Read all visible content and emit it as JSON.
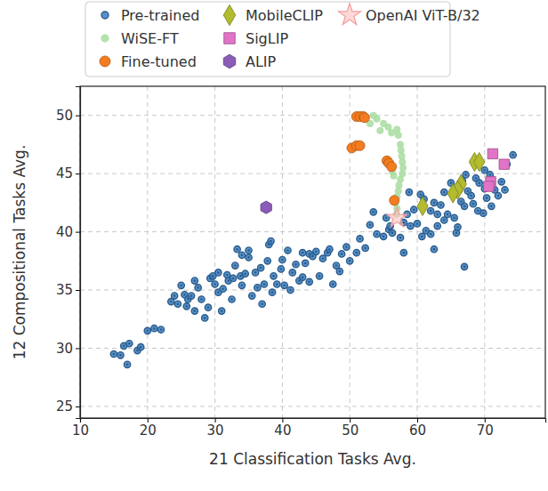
{
  "chart_data": {
    "type": "scatter",
    "x_label": "21 Classification Tasks Avg.",
    "y_label": "12 Compositional Tasks Avg.",
    "xlim": [
      10,
      79
    ],
    "xticks": [
      10,
      20,
      30,
      40,
      50,
      60,
      70
    ],
    "ylim": [
      24,
      52.5
    ],
    "yticks": [
      25,
      30,
      35,
      40,
      45,
      50
    ],
    "grid": true,
    "legend": "top",
    "series": [
      {
        "name": "Pre-trained",
        "color": "#3b7fc0",
        "marker": "circle",
        "x": [
          15,
          16,
          16.5,
          17,
          17.3,
          18.5,
          19,
          20,
          21,
          22,
          23.5,
          24,
          24.5,
          25,
          25.5,
          25.8,
          26,
          26.5,
          27,
          27,
          27.5,
          28,
          28.5,
          29,
          29.3,
          29.7,
          30,
          30.5,
          30.5,
          31,
          31.2,
          31.8,
          32,
          32.5,
          32.7,
          33,
          33.3,
          33.8,
          34,
          34,
          34.5,
          35,
          35,
          35.5,
          36,
          36.3,
          36.8,
          37,
          37.3,
          37.8,
          38,
          38.3,
          38.5,
          38.7,
          39.2,
          39.8,
          40,
          40.3,
          40.8,
          41.2,
          41.5,
          42,
          42.5,
          43,
          43,
          43.4,
          44,
          44,
          44.5,
          45,
          45.5,
          46,
          46.7,
          47,
          47.5,
          48,
          48.5,
          48.8,
          49.5,
          50,
          51,
          51.5,
          52.3,
          53,
          53.5,
          54,
          55,
          55.4,
          55.8,
          56,
          56.3,
          57.5,
          58,
          58,
          58.5,
          58.8,
          59,
          59.5,
          60,
          60.5,
          60.7,
          61,
          61.3,
          62,
          62,
          62.5,
          62.5,
          63,
          63,
          63.5,
          64,
          64,
          64.5,
          65,
          65.5,
          65.8,
          66,
          66.5,
          66.7,
          67,
          67,
          67.2,
          67.5,
          68,
          68.3,
          68.7,
          69,
          69.2,
          69.8,
          70,
          70,
          70.3,
          70.8,
          71,
          71.5,
          72,
          72.5,
          73,
          73.3,
          74.2
        ],
        "values": [
          29.5,
          29.4,
          30.2,
          28.6,
          30.4,
          29.8,
          30.1,
          31.5,
          31.7,
          31.6,
          34,
          34.5,
          33.8,
          35.4,
          34.6,
          33.6,
          34.2,
          34.5,
          33.2,
          35.8,
          35.2,
          34.2,
          32.6,
          33.5,
          36,
          36.2,
          35.5,
          34.8,
          36.5,
          33.2,
          35.1,
          36.3,
          35.8,
          34.2,
          36,
          37.1,
          38.5,
          36.2,
          38,
          35.4,
          36.4,
          37.8,
          38.4,
          34.5,
          36.5,
          35.2,
          36.9,
          33.8,
          35.5,
          37.5,
          38.9,
          39.2,
          34.8,
          36.2,
          35.5,
          36.8,
          37.6,
          35.4,
          38.4,
          35,
          36.5,
          37.2,
          35.8,
          38.2,
          36.1,
          37.3,
          35.7,
          38.1,
          37.9,
          38.3,
          36.2,
          37.7,
          38.2,
          38.5,
          35.5,
          37.1,
          36.6,
          38.1,
          38.7,
          37.5,
          38.2,
          39.4,
          38.6,
          40.6,
          41.7,
          39.8,
          39.6,
          41.2,
          40.2,
          40.5,
          39.9,
          39.5,
          40.8,
          38.2,
          41.5,
          43.4,
          40.5,
          41.9,
          40.7,
          43.2,
          39.6,
          42.8,
          40.1,
          39.8,
          41.8,
          42.5,
          38.5,
          40.5,
          41.5,
          42.3,
          41,
          43.4,
          41.5,
          44.2,
          41.2,
          39.9,
          40.4,
          42.6,
          44.4,
          37,
          42.2,
          44.9,
          43.5,
          43.1,
          42.4,
          44.6,
          41.8,
          44.2,
          41.6,
          43.7,
          45.3,
          42.9,
          44.9,
          42.2,
          43.6,
          43.1,
          44.3,
          43.6,
          45.8,
          46.6
        ]
      },
      {
        "name": "WiSE-FT",
        "color": "#a8dca0",
        "marker": "circle",
        "x": [
          53,
          53.5,
          54,
          54.5,
          55,
          55.7,
          56.2,
          57,
          57.2,
          57.5,
          57.6,
          57.7,
          57.8,
          57.9,
          56.3,
          56.5,
          57.8,
          57.5,
          57.3,
          57.2,
          57,
          56.8,
          57,
          56.9
        ],
        "values": [
          49.3,
          50,
          49.7,
          48.7,
          49.3,
          49,
          48.5,
          48.8,
          48.3,
          47.5,
          47,
          46.5,
          46,
          45.5,
          45.2,
          44.8,
          45,
          44.5,
          44,
          43.5,
          43,
          42.5,
          42,
          41.5
        ]
      },
      {
        "name": "Fine-tuned",
        "color": "#f47c20",
        "marker": "circle",
        "x": [
          51,
          51.5,
          52,
          52.2,
          50.3,
          51,
          51.5,
          55.5,
          55.8,
          56.2,
          56.6
        ],
        "values": [
          49.9,
          49.9,
          49.9,
          49.8,
          47.2,
          47.4,
          47.4,
          46.1,
          45.9,
          45.6,
          42.7
        ]
      },
      {
        "name": "MobileCLIP",
        "color": "#b3bb2f",
        "marker": "diamond",
        "x": [
          68.5,
          69.2,
          66.5,
          66,
          65.3,
          60.8
        ],
        "values": [
          46,
          46,
          44.1,
          43.6,
          43.3,
          42.2
        ]
      },
      {
        "name": "SigLIP",
        "color": "#e274c8",
        "marker": "square",
        "x": [
          71.2,
          72.9,
          70.9,
          70.6
        ],
        "values": [
          46.7,
          45.8,
          44.3,
          43.9
        ]
      },
      {
        "name": "ALIP",
        "color": "#8a5cb8",
        "marker": "hexagon",
        "x": [
          37.6
        ],
        "values": [
          42.1
        ]
      },
      {
        "name": "OpenAI ViT-B/32",
        "color": "#f2a0a0",
        "marker": "star",
        "x": [
          57
        ],
        "values": [
          41.2
        ]
      }
    ]
  }
}
